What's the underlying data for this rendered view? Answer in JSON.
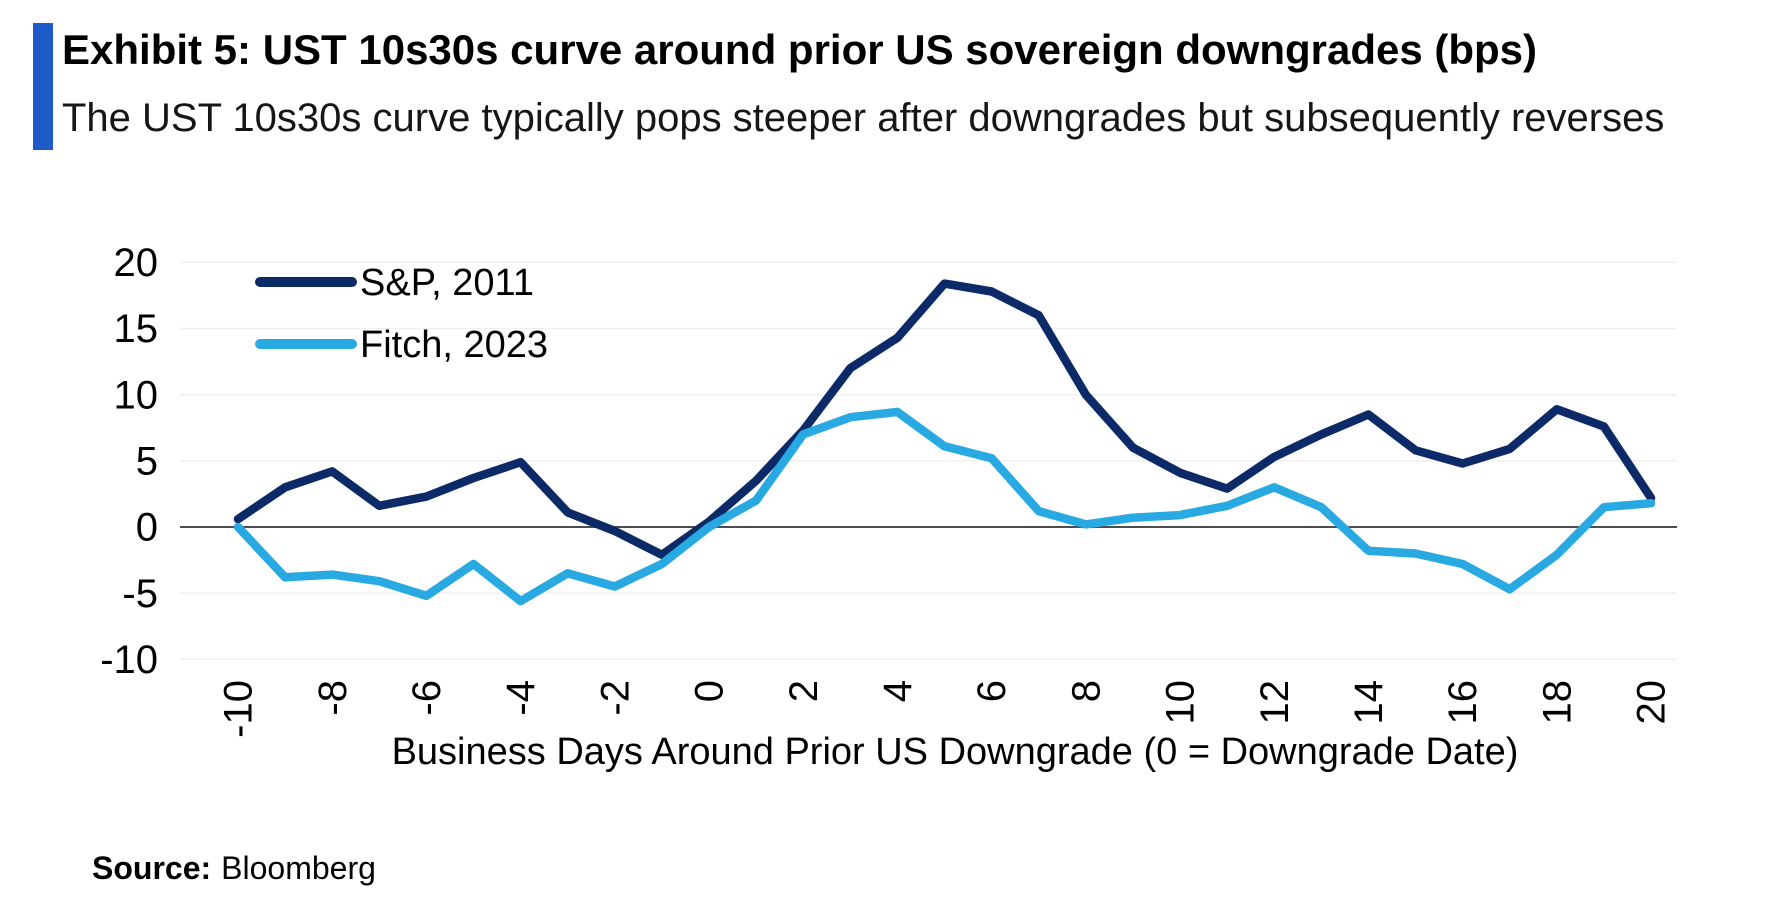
{
  "header": {
    "title": "Exhibit 5: UST 10s30s curve around prior US sovereign downgrades (bps)",
    "subtitle": "The UST 10s30s curve typically pops steeper after downgrades but subsequently reverses"
  },
  "source": {
    "label": "Source:",
    "value": "Bloomberg"
  },
  "theme": {
    "accent_color": "#1d5bc9",
    "axis_color": "#4d4d4d",
    "grid_color": "#f1efee",
    "text_color": "#000000"
  },
  "chart_data": {
    "type": "line",
    "title": "Exhibit 5: UST 10s30s curve around prior US sovereign downgrades (bps)",
    "xlabel": "Business Days Around Prior US Downgrade (0 = Downgrade Date)",
    "ylabel": "",
    "xlim": [
      -10,
      20
    ],
    "ylim": [
      -10,
      20
    ],
    "grid": "horizontal-faint",
    "legend_position": "upper-left",
    "x": [
      -10,
      -9,
      -8,
      -7,
      -6,
      -5,
      -4,
      -3,
      -2,
      -1,
      0,
      1,
      2,
      3,
      4,
      5,
      6,
      7,
      8,
      9,
      10,
      11,
      12,
      13,
      14,
      15,
      16,
      17,
      18,
      19,
      20
    ],
    "x_ticks": [
      -10,
      -8,
      -6,
      -4,
      -2,
      0,
      2,
      4,
      6,
      8,
      10,
      12,
      14,
      16,
      18,
      20
    ],
    "y_ticks": [
      20,
      15,
      10,
      5,
      0,
      -5,
      -10
    ],
    "series": [
      {
        "name": "S&P, 2011",
        "color": "#0c2a68",
        "values": [
          0.6,
          3.0,
          4.2,
          1.6,
          2.3,
          3.7,
          4.9,
          1.1,
          -0.3,
          -2.1,
          0.4,
          3.5,
          7.3,
          12.0,
          14.3,
          18.4,
          17.8,
          16.0,
          10.0,
          6.0,
          4.1,
          2.9,
          5.3,
          7.0,
          8.5,
          5.8,
          4.8,
          5.9,
          8.9,
          7.6,
          2.2
        ]
      },
      {
        "name": "Fitch, 2023",
        "color": "#29a9e1",
        "values": [
          0.0,
          -3.8,
          -3.6,
          -4.1,
          -5.2,
          -2.8,
          -5.6,
          -3.5,
          -4.5,
          -2.8,
          0.0,
          2.0,
          7.0,
          8.3,
          8.7,
          6.1,
          5.2,
          1.2,
          0.2,
          0.7,
          0.9,
          1.6,
          3.0,
          1.5,
          -1.8,
          -2.0,
          -2.8,
          -4.7,
          -2.1,
          1.5,
          1.8
        ]
      }
    ]
  }
}
